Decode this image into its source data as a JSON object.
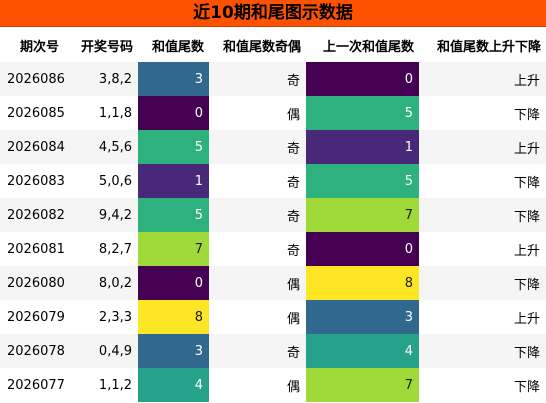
{
  "title": "近10期和尾图示数据",
  "headers": [
    "期次号",
    "开奖号码",
    "和值尾数",
    "和值尾数奇偶",
    "上一次和值尾数",
    "和值尾数上升下降"
  ],
  "palette": {
    "0": "#440154",
    "1": "#482878",
    "3": "#31688E",
    "4": "#26A18A",
    "5": "#2DB27D",
    "7": "#A0DA39",
    "8": "#FDE725"
  },
  "rows": [
    {
      "issue": "2026086",
      "numbers": "3,8,2",
      "tail": "3",
      "parity": "奇",
      "prev": "0",
      "trend": "上升"
    },
    {
      "issue": "2026085",
      "numbers": "1,1,8",
      "tail": "0",
      "parity": "偶",
      "prev": "5",
      "trend": "下降"
    },
    {
      "issue": "2026084",
      "numbers": "4,5,6",
      "tail": "5",
      "parity": "奇",
      "prev": "1",
      "trend": "上升"
    },
    {
      "issue": "2026083",
      "numbers": "5,0,6",
      "tail": "1",
      "parity": "奇",
      "prev": "5",
      "trend": "下降"
    },
    {
      "issue": "2026082",
      "numbers": "9,4,2",
      "tail": "5",
      "parity": "奇",
      "prev": "7",
      "trend": "下降"
    },
    {
      "issue": "2026081",
      "numbers": "8,2,7",
      "tail": "7",
      "parity": "奇",
      "prev": "0",
      "trend": "上升"
    },
    {
      "issue": "2026080",
      "numbers": "8,0,2",
      "tail": "0",
      "parity": "偶",
      "prev": "8",
      "trend": "下降"
    },
    {
      "issue": "2026079",
      "numbers": "2,3,3",
      "tail": "8",
      "parity": "偶",
      "prev": "3",
      "trend": "上升"
    },
    {
      "issue": "2026078",
      "numbers": "0,4,9",
      "tail": "3",
      "parity": "奇",
      "prev": "4",
      "trend": "下降"
    },
    {
      "issue": "2026077",
      "numbers": "1,1,2",
      "tail": "4",
      "parity": "偶",
      "prev": "7",
      "trend": "下降"
    }
  ]
}
